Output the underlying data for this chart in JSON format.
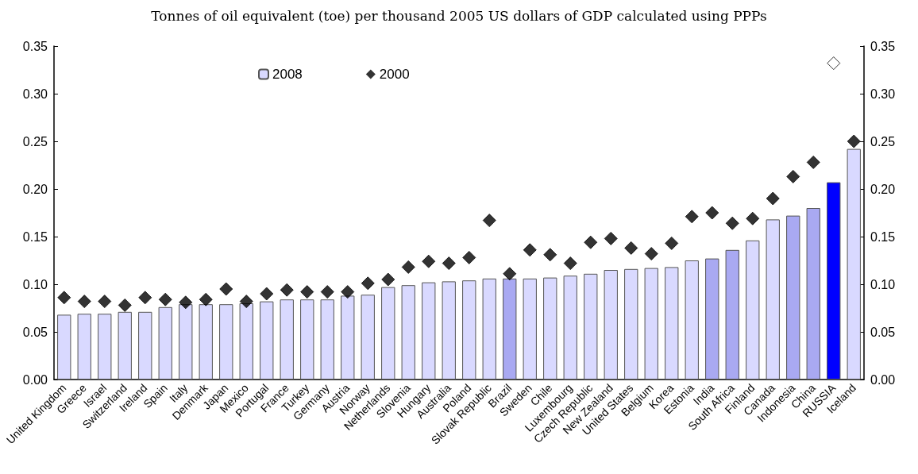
{
  "chart_data": {
    "type": "bar",
    "title": "Tonnes of oil equivalent (toe) per thousand 2005 US dollars of GDP calculated using PPPs",
    "categories": [
      "United Kingdom",
      "Greece",
      "Israel",
      "Switzerland",
      "Ireland",
      "Spain",
      "Italy",
      "Denmark",
      "Japan",
      "Mexico",
      "Portugal",
      "France",
      "Turkey",
      "Germany",
      "Austria",
      "Norway",
      "Netherlands",
      "Slovenia",
      "Hungary",
      "Australia",
      "Poland",
      "Slovak Republic",
      "Brazil",
      "Sweden",
      "Chile",
      "Luxembourg",
      "Czech Republic",
      "New Zealand",
      "United States",
      "Belgium",
      "Korea",
      "Estonia",
      "India",
      "South Africa",
      "Finland",
      "Canada",
      "Indonesia",
      "China",
      "RUSSIA",
      "Iceland"
    ],
    "series": [
      {
        "name": "2008",
        "color": "#d9d9ff",
        "colors": [
          "#d9d9ff",
          "#d9d9ff",
          "#d9d9ff",
          "#d9d9ff",
          "#d9d9ff",
          "#d9d9ff",
          "#d9d9ff",
          "#d9d9ff",
          "#d9d9ff",
          "#d9d9ff",
          "#d9d9ff",
          "#d9d9ff",
          "#d9d9ff",
          "#d9d9ff",
          "#d9d9ff",
          "#d9d9ff",
          "#d9d9ff",
          "#d9d9ff",
          "#d9d9ff",
          "#d9d9ff",
          "#d9d9ff",
          "#d9d9ff",
          "#a9a9f2",
          "#d9d9ff",
          "#d9d9ff",
          "#d9d9ff",
          "#d9d9ff",
          "#d9d9ff",
          "#d9d9ff",
          "#d9d9ff",
          "#d9d9ff",
          "#d9d9ff",
          "#a9a9f2",
          "#a9a9f2",
          "#d9d9ff",
          "#d9d9ff",
          "#a9a9f2",
          "#a9a9f2",
          "#0000ff",
          "#d9d9ff"
        ],
        "values": [
          0.068,
          0.069,
          0.069,
          0.071,
          0.071,
          0.076,
          0.079,
          0.079,
          0.079,
          0.08,
          0.082,
          0.084,
          0.084,
          0.084,
          0.088,
          0.089,
          0.097,
          0.099,
          0.102,
          0.103,
          0.104,
          0.106,
          0.106,
          0.106,
          0.107,
          0.109,
          0.111,
          0.115,
          0.116,
          0.117,
          0.118,
          0.125,
          0.127,
          0.136,
          0.146,
          0.168,
          0.172,
          0.18,
          0.207,
          0.242
        ]
      },
      {
        "name": "2000",
        "type": "scatter",
        "color": "#000000",
        "marker": "diamond",
        "colors": [
          "#000000",
          "#000000",
          "#000000",
          "#000000",
          "#000000",
          "#000000",
          "#000000",
          "#000000",
          "#000000",
          "#000000",
          "#000000",
          "#000000",
          "#000000",
          "#000000",
          "#000000",
          "#000000",
          "#000000",
          "#000000",
          "#000000",
          "#000000",
          "#000000",
          "#000000",
          "#000000",
          "#000000",
          "#000000",
          "#000000",
          "#000000",
          "#000000",
          "#000000",
          "#000000",
          "#000000",
          "#000000",
          "#000000",
          "#000000",
          "#000000",
          "#000000",
          "#000000",
          "#000000",
          "#ffffff",
          "#000000"
        ],
        "values": [
          0.086,
          0.082,
          0.082,
          0.078,
          0.086,
          0.084,
          0.081,
          0.084,
          0.095,
          0.082,
          0.09,
          0.094,
          0.092,
          0.092,
          0.092,
          0.101,
          0.105,
          0.118,
          0.124,
          0.122,
          0.128,
          0.167,
          0.111,
          0.136,
          0.131,
          0.122,
          0.144,
          0.148,
          0.138,
          0.132,
          0.143,
          0.171,
          0.175,
          0.164,
          0.169,
          0.19,
          0.213,
          0.228,
          0.332,
          0.25
        ]
      }
    ],
    "ylim": [
      0,
      0.35
    ],
    "yticks": [
      {
        "value": 0,
        "label": "0.00"
      },
      {
        "value": 0.05,
        "label": "0.05"
      },
      {
        "value": 0.1,
        "label": "0.10"
      },
      {
        "value": 0.15,
        "label": "0.15"
      },
      {
        "value": 0.2,
        "label": "0.20"
      },
      {
        "value": 0.25,
        "label": "0.25"
      },
      {
        "value": 0.3,
        "label": "0.30"
      },
      {
        "value": 0.35,
        "label": "0.35"
      }
    ],
    "y2lim": [
      0,
      0.35
    ],
    "y2ticks": [
      {
        "value": 0,
        "label": "0.00"
      },
      {
        "value": 0.05,
        "label": "0.05"
      },
      {
        "value": 0.1,
        "label": "0.10"
      },
      {
        "value": 0.15,
        "label": "0.15"
      },
      {
        "value": 0.2,
        "label": "0.20"
      },
      {
        "value": 0.25,
        "label": "0.25"
      },
      {
        "value": 0.3,
        "label": "0.30"
      },
      {
        "value": 0.35,
        "label": "0.35"
      }
    ],
    "grid": false,
    "legend": "top left"
  }
}
